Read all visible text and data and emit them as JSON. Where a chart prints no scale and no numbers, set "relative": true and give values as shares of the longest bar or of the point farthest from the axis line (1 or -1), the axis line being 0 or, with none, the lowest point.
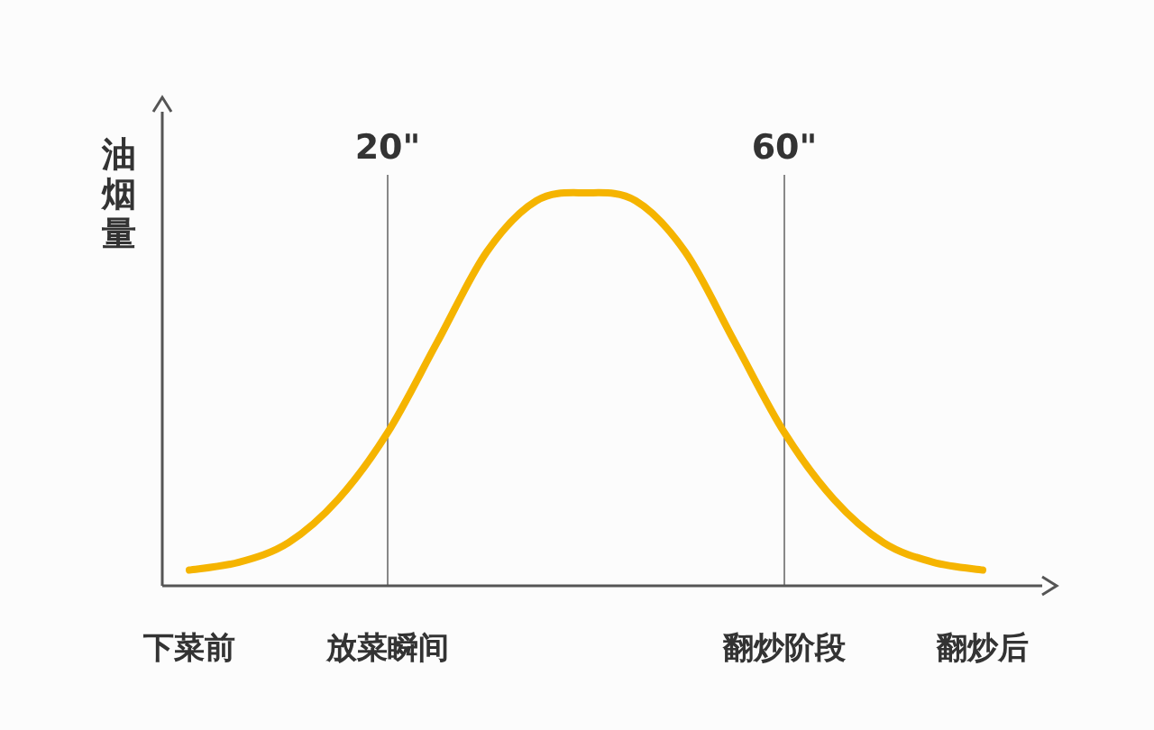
{
  "chart_data": {
    "type": "line",
    "ylabel": "油烟量",
    "relative": true,
    "categories": [
      "下菜前",
      null,
      null,
      null,
      "放菜瞬间",
      null,
      null,
      null,
      null,
      null,
      null,
      null,
      "翻炒阶段",
      null,
      null,
      null,
      "翻炒后"
    ],
    "series": [
      {
        "color": "#f5b400",
        "values": [
          0.04,
          0.06,
          0.11,
          0.22,
          0.39,
          0.62,
          0.85,
          0.98,
          1,
          0.98,
          0.85,
          0.62,
          0.39,
          0.22,
          0.11,
          0.06,
          0.04
        ]
      }
    ],
    "ref_lines": [
      {
        "axis": "x",
        "value": "放菜瞬间",
        "label": "20\""
      },
      {
        "axis": "x",
        "value": "翻炒阶段",
        "label": "60\""
      }
    ]
  }
}
